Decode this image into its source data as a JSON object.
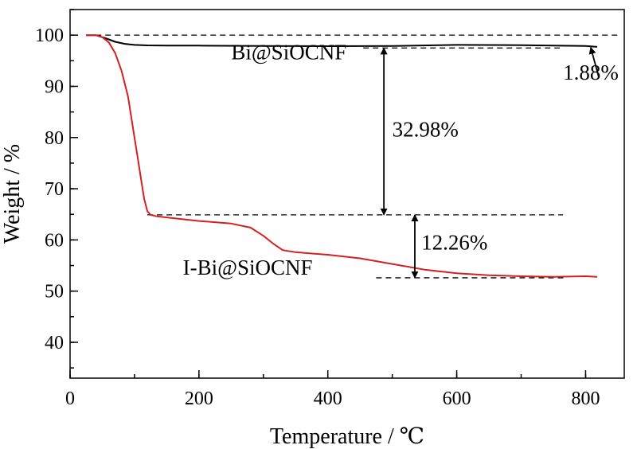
{
  "chart_data": {
    "type": "line",
    "title": "",
    "xlabel": "Temperature / ℃",
    "ylabel": "Weight / %",
    "xlim": [
      0,
      860
    ],
    "ylim": [
      33,
      105
    ],
    "x_ticks": [
      0,
      200,
      400,
      600,
      800
    ],
    "y_ticks": [
      40,
      50,
      60,
      70,
      80,
      90,
      100
    ],
    "x_tick_labels": [
      "0",
      "200",
      "400",
      "600",
      "800"
    ],
    "y_tick_labels": [
      "40",
      "50",
      "60",
      "70",
      "80",
      "90",
      "100"
    ],
    "grid": false,
    "series": [
      {
        "name": "Bi@SiOCNF",
        "color": "#000000",
        "x": [
          25,
          40,
          55,
          70,
          85,
          100,
          120,
          150,
          200,
          300,
          400,
          500,
          600,
          700,
          800,
          818
        ],
        "y": [
          100,
          100,
          99.4,
          98.7,
          98.3,
          98.1,
          98,
          97.95,
          97.95,
          97.9,
          97.85,
          97.9,
          98.1,
          98.05,
          97.9,
          97.7
        ]
      },
      {
        "name": "I-Bi@SiOCNF",
        "color": "#d42020",
        "x": [
          25,
          40,
          50,
          60,
          70,
          80,
          90,
          100,
          105,
          110,
          115,
          120,
          125,
          135,
          150,
          200,
          250,
          280,
          300,
          315,
          330,
          350,
          400,
          450,
          500,
          550,
          600,
          650,
          700,
          750,
          800,
          818
        ],
        "y": [
          100,
          100,
          99.6,
          98.6,
          96.5,
          93,
          88,
          80,
          76,
          72,
          68,
          65.6,
          64.9,
          64.6,
          64.4,
          63.7,
          63.2,
          62.4,
          60.8,
          59.3,
          58,
          57.6,
          57.1,
          56.4,
          55.3,
          54.2,
          53.5,
          53.1,
          52.9,
          52.8,
          52.9,
          52.8
        ]
      }
    ],
    "reference_lines": [
      {
        "x": [
          25,
          855
        ],
        "y": 100
      },
      {
        "x": [
          455,
          760
        ],
        "y": 97.5
      },
      {
        "x": [
          120,
          765
        ],
        "y": 64.9
      },
      {
        "x": [
          475,
          768
        ],
        "y": 52.6
      }
    ],
    "annotations": [
      {
        "text": "Bi@SiOCNF",
        "x": 250,
        "y": 95.3
      },
      {
        "text": "I-Bi@SiOCNF",
        "x": 175,
        "y": 53.2
      },
      {
        "text": "32.98%",
        "x": 500,
        "y": 80.2
      },
      {
        "text": "12.26%",
        "x": 545,
        "y": 58.1
      },
      {
        "text": "1.88%",
        "x": 765,
        "y": 91.3
      }
    ],
    "arrows": [
      {
        "from": [
          487,
          97.5
        ],
        "to": [
          487,
          64.9
        ]
      },
      {
        "from": [
          535,
          64.9
        ],
        "to": [
          535,
          52.6
        ]
      },
      {
        "from": [
          820,
          92
        ],
        "to": [
          808,
          97.6
        ]
      }
    ]
  }
}
